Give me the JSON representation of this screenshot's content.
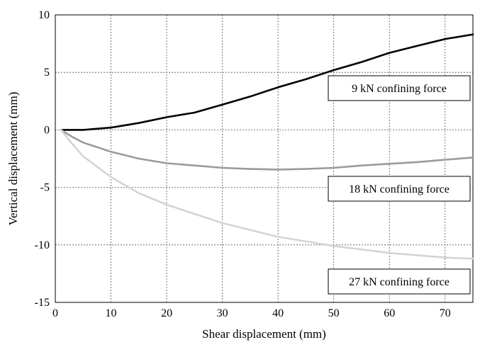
{
  "chart_data": {
    "type": "line",
    "xlabel": "Shear displacement (mm)",
    "ylabel": "Vertical displacement (mm)",
    "xlim": [
      0,
      75
    ],
    "ylim": [
      -15,
      10
    ],
    "x_ticks": [
      0,
      10,
      20,
      30,
      40,
      50,
      60,
      70
    ],
    "y_ticks": [
      -15,
      -10,
      -5,
      0,
      5,
      10
    ],
    "grid": true,
    "grid_style": "dashed",
    "legend": "boxed labels at right",
    "series": [
      {
        "name": "9 kN confining force",
        "color": "#000000",
        "x": [
          1,
          5,
          10,
          15,
          20,
          25,
          30,
          35,
          40,
          45,
          50,
          55,
          60,
          65,
          70,
          75
        ],
        "y": [
          0,
          0,
          0.2,
          0.6,
          1.1,
          1.5,
          2.2,
          2.9,
          3.7,
          4.4,
          5.2,
          5.9,
          6.7,
          7.3,
          7.9,
          8.3
        ]
      },
      {
        "name": "18 kN confining force",
        "color": "#9a9a9a",
        "x": [
          1,
          3,
          5,
          10,
          15,
          20,
          25,
          30,
          35,
          40,
          45,
          50,
          55,
          60,
          65,
          70,
          75
        ],
        "y": [
          0,
          -0.6,
          -1.1,
          -1.9,
          -2.5,
          -2.9,
          -3.1,
          -3.3,
          -3.4,
          -3.45,
          -3.4,
          -3.3,
          -3.1,
          -2.95,
          -2.8,
          -2.6,
          -2.4
        ]
      },
      {
        "name": "27 kN confining force",
        "color": "#d4d4d4",
        "x": [
          1,
          3,
          5,
          10,
          15,
          20,
          25,
          30,
          35,
          40,
          45,
          50,
          55,
          60,
          65,
          70,
          75
        ],
        "y": [
          0,
          -1.2,
          -2.3,
          -4.1,
          -5.5,
          -6.5,
          -7.3,
          -8.1,
          -8.7,
          -9.3,
          -9.7,
          -10.1,
          -10.4,
          -10.7,
          -10.9,
          -11.1,
          -11.2
        ]
      }
    ]
  }
}
